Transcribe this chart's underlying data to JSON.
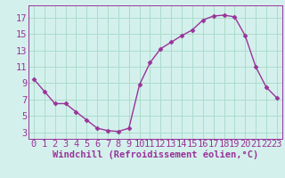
{
  "x": [
    0,
    1,
    2,
    3,
    4,
    5,
    6,
    7,
    8,
    9,
    10,
    11,
    12,
    13,
    14,
    15,
    16,
    17,
    18,
    19,
    20,
    21,
    22,
    23
  ],
  "y": [
    9.5,
    8.0,
    6.5,
    6.5,
    5.5,
    4.5,
    3.5,
    3.2,
    3.1,
    3.5,
    8.8,
    11.5,
    13.2,
    14.0,
    14.8,
    15.5,
    16.7,
    17.2,
    17.3,
    17.1,
    14.8,
    11.0,
    8.5,
    7.2
  ],
  "line_color": "#993399",
  "marker": "D",
  "marker_size": 2.5,
  "bg_color": "#d4f0ec",
  "grid_color": "#aaddcc",
  "xlabel": "Windchill (Refroidissement éolien,°C)",
  "xlabel_color": "#993399",
  "yticks": [
    3,
    5,
    7,
    9,
    11,
    13,
    15,
    17
  ],
  "xticks": [
    0,
    1,
    2,
    3,
    4,
    5,
    6,
    7,
    8,
    9,
    10,
    11,
    12,
    13,
    14,
    15,
    16,
    17,
    18,
    19,
    20,
    21,
    22,
    23
  ],
  "ylim": [
    2.2,
    18.5
  ],
  "xlim": [
    -0.5,
    23.5
  ],
  "tick_fontsize": 7.5,
  "xlabel_fontsize": 7.5
}
